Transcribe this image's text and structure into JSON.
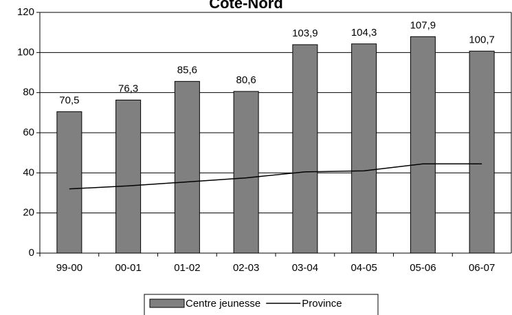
{
  "chart_data": {
    "type": "bar",
    "title": "Côte-Nord",
    "categories": [
      "99-00",
      "00-01",
      "01-02",
      "02-03",
      "03-04",
      "04-05",
      "05-06",
      "06-07"
    ],
    "series": [
      {
        "name": "Centre jeunesse",
        "type": "bar",
        "color": "#808080",
        "values": [
          70.5,
          76.3,
          85.6,
          80.6,
          103.9,
          104.3,
          107.9,
          100.7
        ],
        "value_labels": [
          "70,5",
          "76,3",
          "85,6",
          "80,6",
          "103,9",
          "104,3",
          "107,9",
          "100,7"
        ]
      },
      {
        "name": "Province",
        "type": "line",
        "color": "#000000",
        "values": [
          32,
          33.5,
          35.5,
          37.5,
          40.5,
          41,
          44.5,
          44.5
        ]
      }
    ],
    "ylim": [
      0,
      120
    ],
    "yticks": [
      0,
      20,
      40,
      60,
      80,
      100,
      120
    ],
    "grid": true
  }
}
